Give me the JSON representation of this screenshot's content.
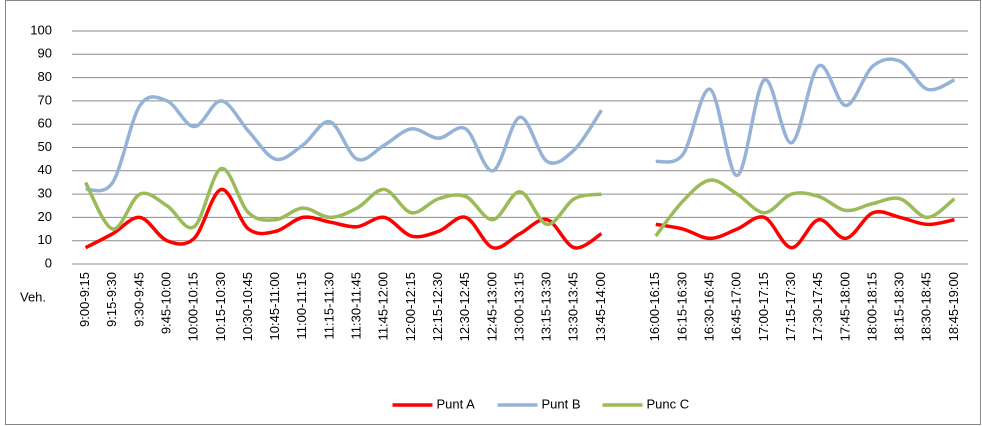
{
  "chart_data": {
    "type": "line",
    "ylabel": "Veh.",
    "categories": [
      "9:00-9:15",
      "9:15-9:30",
      "9:30-9:45",
      "9:45-10:00",
      "10:00-10:15",
      "10:15-10:30",
      "10:30-10:45",
      "10:45-11:00",
      "11:00-11:15",
      "11:15-11:30",
      "11:30-11:45",
      "11:45-12:00",
      "12:00-12:15",
      "12:15-12:30",
      "12:30-12:45",
      "12:45-13:00",
      "13:00-13:15",
      "13:15-13:30",
      "13:30-13:45",
      "13:45-14:00",
      null,
      "16:00-16:15",
      "16:15-16:30",
      "16:30-16:45",
      "16:45-17:00",
      "17:00-17:15",
      "17:15-17:30",
      "17:30-17:45",
      "17:45-18:00",
      "18:00-18:15",
      "18:15-18:30",
      "18:30-18:45",
      "18:45-19:00"
    ],
    "series": [
      {
        "name": "Punt A",
        "color": "#ff0000",
        "values": [
          7,
          13,
          20,
          10,
          11,
          32,
          15,
          14,
          20,
          18,
          16,
          20,
          12,
          14,
          20,
          7,
          13,
          19,
          7,
          13,
          null,
          17,
          15,
          11,
          15,
          20,
          7,
          19,
          11,
          22,
          20,
          17,
          19
        ]
      },
      {
        "name": "Punt B",
        "color": "#95b3d7",
        "values": [
          32,
          35,
          68,
          70,
          59,
          70,
          57,
          45,
          51,
          61,
          45,
          51,
          58,
          54,
          58,
          40,
          63,
          44,
          49,
          66,
          null,
          44,
          47,
          75,
          38,
          79,
          52,
          85,
          68,
          85,
          87,
          75,
          79
        ]
      },
      {
        "name": "Punc C",
        "color": "#9bbb59",
        "values": [
          35,
          15,
          30,
          25,
          16,
          41,
          22,
          19,
          24,
          20,
          24,
          32,
          22,
          28,
          29,
          19,
          31,
          17,
          28,
          30,
          null,
          12,
          27,
          36,
          30,
          22,
          30,
          29,
          23,
          26,
          28,
          20,
          28
        ]
      }
    ],
    "ylim": [
      0,
      100
    ],
    "yticks": [
      0,
      10,
      20,
      30,
      40,
      50,
      60,
      70,
      80,
      90,
      100
    ],
    "grid": true,
    "legend": "bottom"
  }
}
